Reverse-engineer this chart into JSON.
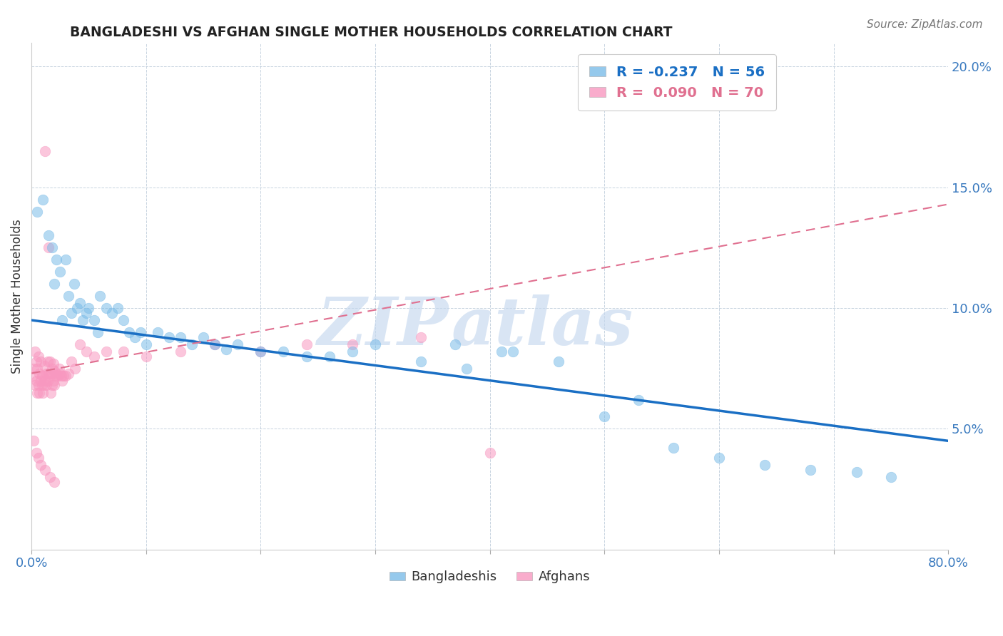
{
  "title": "BANGLADESHI VS AFGHAN SINGLE MOTHER HOUSEHOLDS CORRELATION CHART",
  "source": "Source: ZipAtlas.com",
  "ylabel": "Single Mother Households",
  "xlim": [
    0.0,
    0.8
  ],
  "ylim": [
    0.0,
    0.21
  ],
  "blue_R": -0.237,
  "blue_N": 56,
  "pink_R": 0.09,
  "pink_N": 70,
  "blue_color": "#7bbce8",
  "pink_color": "#f898c0",
  "blue_line_color": "#1a6fc4",
  "pink_line_color": "#e07090",
  "watermark_zip": "ZIP",
  "watermark_atlas": "atlas",
  "legend_blue_label": "R = -0.237   N = 56",
  "legend_pink_label": "R =  0.090   N = 70",
  "legend_blue_text_color": "#1a6fc4",
  "legend_pink_text_color": "#e07090",
  "blue_line_x": [
    0.0,
    0.8
  ],
  "blue_line_y": [
    0.095,
    0.045
  ],
  "pink_line_x": [
    0.0,
    0.8
  ],
  "pink_line_y": [
    0.073,
    0.143
  ],
  "blue_x": [
    0.005,
    0.01,
    0.015,
    0.018,
    0.02,
    0.022,
    0.025,
    0.027,
    0.03,
    0.032,
    0.035,
    0.037,
    0.04,
    0.042,
    0.045,
    0.048,
    0.05,
    0.055,
    0.058,
    0.06,
    0.065,
    0.07,
    0.075,
    0.08,
    0.085,
    0.09,
    0.095,
    0.1,
    0.11,
    0.12,
    0.13,
    0.14,
    0.15,
    0.16,
    0.17,
    0.18,
    0.2,
    0.22,
    0.24,
    0.26,
    0.28,
    0.3,
    0.34,
    0.38,
    0.42,
    0.46,
    0.5,
    0.53,
    0.56,
    0.6,
    0.64,
    0.68,
    0.72,
    0.75,
    0.37,
    0.41
  ],
  "blue_y": [
    0.14,
    0.145,
    0.13,
    0.125,
    0.11,
    0.12,
    0.115,
    0.095,
    0.12,
    0.105,
    0.098,
    0.11,
    0.1,
    0.102,
    0.095,
    0.098,
    0.1,
    0.095,
    0.09,
    0.105,
    0.1,
    0.098,
    0.1,
    0.095,
    0.09,
    0.088,
    0.09,
    0.085,
    0.09,
    0.088,
    0.088,
    0.085,
    0.088,
    0.085,
    0.083,
    0.085,
    0.082,
    0.082,
    0.08,
    0.08,
    0.082,
    0.085,
    0.078,
    0.075,
    0.082,
    0.078,
    0.055,
    0.062,
    0.042,
    0.038,
    0.035,
    0.033,
    0.032,
    0.03,
    0.085,
    0.082
  ],
  "pink_x": [
    0.001,
    0.002,
    0.003,
    0.003,
    0.004,
    0.004,
    0.005,
    0.005,
    0.006,
    0.006,
    0.007,
    0.007,
    0.008,
    0.008,
    0.009,
    0.009,
    0.01,
    0.01,
    0.011,
    0.011,
    0.012,
    0.012,
    0.013,
    0.013,
    0.014,
    0.014,
    0.015,
    0.015,
    0.016,
    0.016,
    0.017,
    0.017,
    0.018,
    0.018,
    0.019,
    0.019,
    0.02,
    0.02,
    0.021,
    0.022,
    0.023,
    0.024,
    0.025,
    0.026,
    0.027,
    0.028,
    0.03,
    0.032,
    0.035,
    0.038,
    0.042,
    0.048,
    0.055,
    0.065,
    0.08,
    0.1,
    0.13,
    0.16,
    0.2,
    0.24,
    0.28,
    0.34,
    0.4,
    0.002,
    0.004,
    0.006,
    0.008,
    0.012,
    0.016,
    0.02
  ],
  "pink_y": [
    0.072,
    0.075,
    0.068,
    0.082,
    0.07,
    0.078,
    0.065,
    0.075,
    0.068,
    0.08,
    0.065,
    0.073,
    0.07,
    0.078,
    0.068,
    0.072,
    0.065,
    0.072,
    0.068,
    0.076,
    0.07,
    0.165,
    0.068,
    0.073,
    0.07,
    0.078,
    0.125,
    0.073,
    0.072,
    0.078,
    0.065,
    0.073,
    0.068,
    0.075,
    0.07,
    0.077,
    0.068,
    0.074,
    0.072,
    0.073,
    0.072,
    0.075,
    0.073,
    0.072,
    0.07,
    0.072,
    0.072,
    0.073,
    0.078,
    0.075,
    0.085,
    0.082,
    0.08,
    0.082,
    0.082,
    0.08,
    0.082,
    0.085,
    0.082,
    0.085,
    0.085,
    0.088,
    0.04,
    0.045,
    0.04,
    0.038,
    0.035,
    0.033,
    0.03,
    0.028
  ]
}
